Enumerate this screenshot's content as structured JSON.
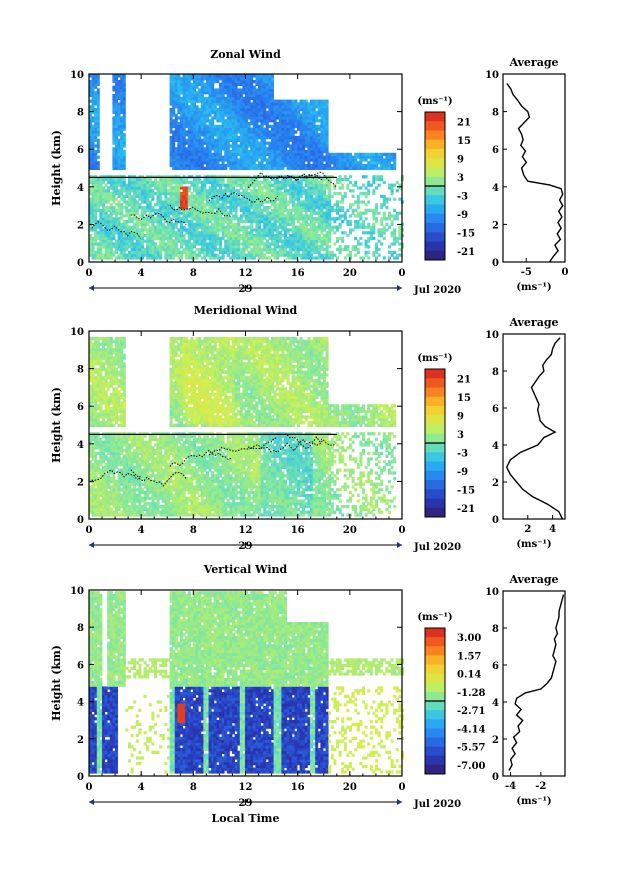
{
  "chart_data": [
    {
      "type": "heatmap",
      "title": "Zonal Wind",
      "ylabel": "Height (km)",
      "xlabel": "",
      "unit": "(ms⁻¹)",
      "xticks": [
        "0",
        "4",
        "8",
        "12",
        "16",
        "20",
        "0"
      ],
      "yticks": [
        "0",
        "2",
        "4",
        "6",
        "8",
        "10"
      ],
      "xlim": [
        0,
        24
      ],
      "ylim": [
        0,
        10
      ],
      "date_center": "29",
      "date_right": "Jul 2020",
      "colorbar_ticks": [
        "21",
        "15",
        "9",
        "3",
        "-3",
        "-9",
        "-15",
        "-21"
      ],
      "colorbar_range": [
        -24,
        24
      ],
      "profile": {
        "title": "Average",
        "xticks": [
          "-5",
          "0"
        ],
        "xlim": [
          -8,
          0
        ],
        "xlabel": "(ms⁻¹)",
        "yticks": [
          "0",
          "2",
          "4",
          "6",
          "8",
          "10"
        ],
        "points": [
          [
            -2.0,
            0.0
          ],
          [
            -1.5,
            0.3
          ],
          [
            -0.9,
            0.6
          ],
          [
            -1.3,
            0.9
          ],
          [
            -0.6,
            1.2
          ],
          [
            -1.0,
            1.5
          ],
          [
            -0.5,
            1.8
          ],
          [
            -0.9,
            2.1
          ],
          [
            -0.4,
            2.4
          ],
          [
            -0.8,
            2.7
          ],
          [
            -0.3,
            3.0
          ],
          [
            -0.7,
            3.3
          ],
          [
            -0.3,
            3.6
          ],
          [
            -0.5,
            3.9
          ],
          [
            -2.0,
            4.1
          ],
          [
            -4.8,
            4.3
          ],
          [
            -5.3,
            4.6
          ],
          [
            -5.6,
            5.0
          ],
          [
            -5.0,
            5.3
          ],
          [
            -5.5,
            5.6
          ],
          [
            -5.1,
            5.9
          ],
          [
            -5.7,
            6.2
          ],
          [
            -5.4,
            6.5
          ],
          [
            -5.6,
            6.8
          ],
          [
            -6.0,
            7.1
          ],
          [
            -5.3,
            7.4
          ],
          [
            -4.6,
            7.7
          ],
          [
            -4.8,
            8.0
          ],
          [
            -5.6,
            8.3
          ],
          [
            -6.1,
            8.6
          ],
          [
            -6.7,
            8.9
          ],
          [
            -7.0,
            9.2
          ],
          [
            -7.5,
            9.5
          ]
        ]
      }
    },
    {
      "type": "heatmap",
      "title": "Meridional Wind",
      "ylabel": "Height (km)",
      "xlabel": "",
      "unit": "(ms⁻¹)",
      "xticks": [
        "0",
        "4",
        "8",
        "12",
        "16",
        "20",
        "0"
      ],
      "yticks": [
        "0",
        "2",
        "4",
        "6",
        "8",
        "10"
      ],
      "xlim": [
        0,
        24
      ],
      "ylim": [
        0,
        10
      ],
      "date_center": "29",
      "date_right": "Jul 2020",
      "colorbar_ticks": [
        "21",
        "15",
        "9",
        "3",
        "-3",
        "-9",
        "-15",
        "-21"
      ],
      "colorbar_range": [
        -24,
        24
      ],
      "profile": {
        "title": "Average",
        "xticks": [
          "2",
          "4"
        ],
        "xlim": [
          0,
          5
        ],
        "xlabel": "(ms⁻¹)",
        "yticks": [
          "0",
          "2",
          "4",
          "6",
          "8",
          "10"
        ],
        "points": [
          [
            4.8,
            0.0
          ],
          [
            4.5,
            0.4
          ],
          [
            3.6,
            0.8
          ],
          [
            2.4,
            1.2
          ],
          [
            1.6,
            1.6
          ],
          [
            1.1,
            2.0
          ],
          [
            0.6,
            2.4
          ],
          [
            0.3,
            2.8
          ],
          [
            0.6,
            3.2
          ],
          [
            1.4,
            3.6
          ],
          [
            2.8,
            4.0
          ],
          [
            3.3,
            4.4
          ],
          [
            4.2,
            4.7
          ],
          [
            3.4,
            5.0
          ],
          [
            3.0,
            5.3
          ],
          [
            2.9,
            5.6
          ],
          [
            2.8,
            5.9
          ],
          [
            2.9,
            6.2
          ],
          [
            2.7,
            6.5
          ],
          [
            2.5,
            6.8
          ],
          [
            2.3,
            7.1
          ],
          [
            2.6,
            7.4
          ],
          [
            2.9,
            7.7
          ],
          [
            3.3,
            8.0
          ],
          [
            3.2,
            8.3
          ],
          [
            3.5,
            8.6
          ],
          [
            3.9,
            8.9
          ],
          [
            4.0,
            9.2
          ],
          [
            4.2,
            9.5
          ],
          [
            4.6,
            9.8
          ]
        ]
      }
    },
    {
      "type": "heatmap",
      "title": "Vertical Wind",
      "ylabel": "Height (km)",
      "xlabel": "Local Time",
      "unit": "(ms⁻¹)",
      "xticks": [
        "0",
        "4",
        "8",
        "12",
        "16",
        "20",
        "0"
      ],
      "yticks": [
        "0",
        "2",
        "4",
        "6",
        "8",
        "10"
      ],
      "xlim": [
        0,
        24
      ],
      "ylim": [
        0,
        10
      ],
      "date_center": "29",
      "date_right": "Jul 2020",
      "colorbar_ticks": [
        "3.00",
        "1.57",
        "0.14",
        "-1.28",
        "-2.71",
        "-4.14",
        "-5.57",
        "-7.00"
      ],
      "colorbar_range": [
        -7.7,
        3.7
      ],
      "profile": {
        "title": "Average",
        "xticks": [
          "-4",
          "-2"
        ],
        "xlim": [
          -4.5,
          -0.4
        ],
        "xlabel": "(ms⁻¹)",
        "yticks": [
          "0",
          "2",
          "4",
          "6",
          "8",
          "10"
        ],
        "points": [
          [
            -4.1,
            0.3
          ],
          [
            -3.9,
            0.6
          ],
          [
            -4.0,
            0.9
          ],
          [
            -3.7,
            1.2
          ],
          [
            -3.9,
            1.5
          ],
          [
            -3.6,
            1.8
          ],
          [
            -3.8,
            2.1
          ],
          [
            -3.4,
            2.4
          ],
          [
            -3.5,
            2.7
          ],
          [
            -3.2,
            3.0
          ],
          [
            -3.6,
            3.3
          ],
          [
            -3.3,
            3.6
          ],
          [
            -3.7,
            3.9
          ],
          [
            -3.6,
            4.2
          ],
          [
            -3.0,
            4.5
          ],
          [
            -2.0,
            4.7
          ],
          [
            -1.6,
            5.0
          ],
          [
            -1.3,
            5.3
          ],
          [
            -1.2,
            5.6
          ],
          [
            -1.1,
            5.9
          ],
          [
            -1.0,
            6.2
          ],
          [
            -1.2,
            6.5
          ],
          [
            -1.1,
            6.8
          ],
          [
            -1.0,
            7.1
          ],
          [
            -1.1,
            7.4
          ],
          [
            -0.9,
            7.7
          ],
          [
            -1.0,
            8.0
          ],
          [
            -0.9,
            8.3
          ],
          [
            -0.8,
            8.6
          ],
          [
            -0.8,
            8.9
          ],
          [
            -0.7,
            9.2
          ],
          [
            -0.6,
            9.5
          ],
          [
            -0.5,
            9.8
          ]
        ]
      }
    }
  ]
}
